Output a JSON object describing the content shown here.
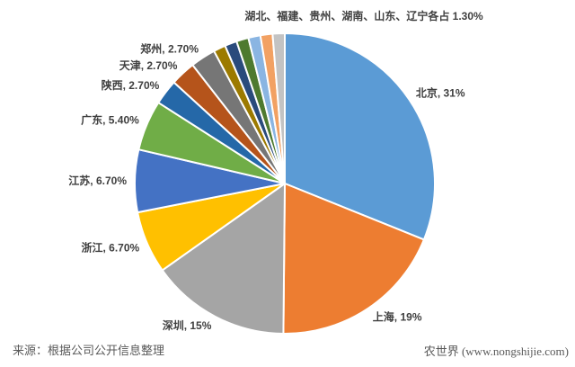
{
  "chart_data": {
    "type": "pie",
    "title": "湖北、福建、贵州、湖南、山东、辽宁各占 1.30%",
    "legend_position": "none",
    "label_style": "outside-end",
    "background": "#ffffff",
    "label_color": "#3f3f3f",
    "slice_border_color": "#ffffff",
    "slices": [
      {
        "name": "北京",
        "value": 31,
        "label": "北京, 31%",
        "color": "#5B9BD5"
      },
      {
        "name": "上海",
        "value": 19,
        "label": "上海, 19%",
        "color": "#ED7D31"
      },
      {
        "name": "深圳",
        "value": 15,
        "label": "深圳, 15%",
        "color": "#A5A5A5"
      },
      {
        "name": "浙江",
        "value": 6.7,
        "label": "浙江, 6.70%",
        "color": "#FFC000"
      },
      {
        "name": "江苏",
        "value": 6.7,
        "label": "江苏, 6.70%",
        "color": "#4472C4"
      },
      {
        "name": "广东",
        "value": 5.4,
        "label": "广东, 5.40%",
        "color": "#70AD47"
      },
      {
        "name": "陕西",
        "value": 2.7,
        "label": "陕西, 2.70%",
        "color": "#2568A8"
      },
      {
        "name": "天津",
        "value": 2.7,
        "label": "天津, 2.70%",
        "color": "#B5541B"
      },
      {
        "name": "郑州",
        "value": 2.7,
        "label": "郑州, 2.70%",
        "color": "#767676"
      },
      {
        "name": "湖北",
        "value": 1.3,
        "label": null,
        "color": "#9C7A00"
      },
      {
        "name": "福建",
        "value": 1.3,
        "label": null,
        "color": "#2A4B7C"
      },
      {
        "name": "贵州",
        "value": 1.3,
        "label": null,
        "color": "#4E7A2F"
      },
      {
        "name": "湖南",
        "value": 1.3,
        "label": null,
        "color": "#8AB5E2"
      },
      {
        "name": "山东",
        "value": 1.3,
        "label": null,
        "color": "#F2A163"
      },
      {
        "name": "辽宁",
        "value": 1.3,
        "label": null,
        "color": "#C3C3C3"
      }
    ]
  },
  "footer": {
    "source": "来源：根据公司公开信息整理",
    "watermark": "农世界 (www.nongshijie.com)"
  }
}
